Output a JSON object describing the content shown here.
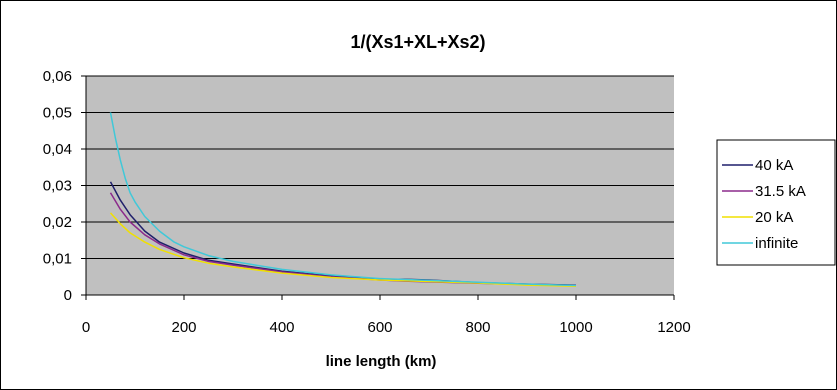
{
  "chart_data": {
    "type": "line",
    "title": "1/(Xs1+XL+Xs2)",
    "xlabel": "line length (km)",
    "ylabel": "",
    "xlim": [
      0,
      1200
    ],
    "ylim": [
      0,
      0.06
    ],
    "xticks": [
      0,
      200,
      400,
      600,
      800,
      1000,
      1200
    ],
    "xtick_labels": [
      "0",
      "200",
      "400",
      "600",
      "800",
      "1000",
      "1200"
    ],
    "yticks": [
      0,
      0.01,
      0.02,
      0.03,
      0.04,
      0.05,
      0.06
    ],
    "ytick_labels": [
      "0",
      "0,01",
      "0,02",
      "0,03",
      "0,04",
      "0,05",
      "0,06"
    ],
    "grid": "horizontal",
    "plot_background": "#c0c0c0",
    "legend_position": "right",
    "series": [
      {
        "name": "40 kA",
        "color": "#1f1f6b",
        "x": [
          50,
          70,
          90,
          120,
          150,
          200,
          250,
          300,
          400,
          500,
          600,
          650,
          700,
          800,
          900,
          1000
        ],
        "y": [
          0.031,
          0.026,
          0.022,
          0.0175,
          0.0145,
          0.0115,
          0.0095,
          0.0085,
          0.0065,
          0.0052,
          0.0042,
          0.0043,
          0.0041,
          0.0034,
          0.003,
          0.0027
        ]
      },
      {
        "name": "31.5 kA",
        "color": "#8b2a8b",
        "x": [
          50,
          70,
          90,
          120,
          150,
          200,
          250,
          300,
          400,
          500,
          600,
          650,
          700,
          800,
          900,
          1000
        ],
        "y": [
          0.028,
          0.0235,
          0.02,
          0.0165,
          0.014,
          0.011,
          0.0092,
          0.0082,
          0.0063,
          0.005,
          0.0041,
          0.0038,
          0.0036,
          0.0032,
          0.0029,
          0.0026
        ]
      },
      {
        "name": "20 kA",
        "color": "#f0e000",
        "x": [
          50,
          70,
          90,
          120,
          150,
          200,
          250,
          300,
          400,
          500,
          600,
          700,
          800,
          900,
          1000
        ],
        "y": [
          0.0225,
          0.0195,
          0.017,
          0.0145,
          0.0125,
          0.0102,
          0.0087,
          0.0077,
          0.006,
          0.0048,
          0.0041,
          0.0037,
          0.0033,
          0.0027,
          0.0024
        ]
      },
      {
        "name": "infinite",
        "color": "#40c8d8",
        "x": [
          50,
          60,
          70,
          80,
          90,
          100,
          120,
          150,
          180,
          200,
          250,
          300,
          400,
          500,
          600,
          700,
          800,
          900,
          1000
        ],
        "y": [
          0.05,
          0.043,
          0.037,
          0.032,
          0.028,
          0.0255,
          0.0215,
          0.0175,
          0.0145,
          0.0132,
          0.0108,
          0.0092,
          0.007,
          0.0055,
          0.0045,
          0.004,
          0.0035,
          0.003,
          0.0026
        ]
      }
    ]
  }
}
